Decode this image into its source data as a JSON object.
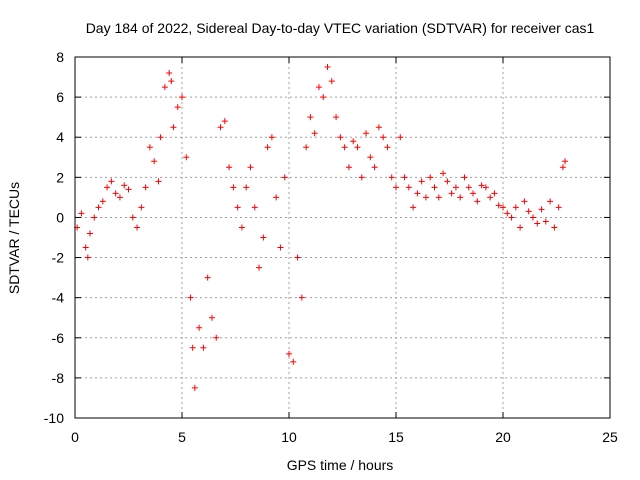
{
  "chart_data": {
    "type": "scatter",
    "title": "Day 184 of 2022, Sidereal Day-to-day VTEC variation (SDTVAR) for receiver cas1",
    "xlabel": "GPS time / hours",
    "ylabel": "SDTVAR / TECUs",
    "xlim": [
      0,
      25
    ],
    "ylim": [
      -10,
      8
    ],
    "xticks": [
      0,
      5,
      10,
      15,
      20,
      25
    ],
    "yticks": [
      -10,
      -8,
      -6,
      -4,
      -2,
      0,
      2,
      4,
      6,
      8
    ],
    "grid": true,
    "marker": "+",
    "color": "#ff0000",
    "series": [
      {
        "name": "cas1",
        "x": [
          0.1,
          0.3,
          0.5,
          0.6,
          0.7,
          0.9,
          1.1,
          1.3,
          1.5,
          1.7,
          1.9,
          2.1,
          2.3,
          2.5,
          2.7,
          2.9,
          3.1,
          3.3,
          3.5,
          3.7,
          3.9,
          4.0,
          4.2,
          4.4,
          4.5,
          4.6,
          4.8,
          5.0,
          5.2,
          5.4,
          5.5,
          5.6,
          5.8,
          6.0,
          6.2,
          6.4,
          6.6,
          6.8,
          7.0,
          7.2,
          7.4,
          7.6,
          7.8,
          8.0,
          8.2,
          8.4,
          8.6,
          8.8,
          9.0,
          9.2,
          9.4,
          9.6,
          9.8,
          10.0,
          10.2,
          10.4,
          10.6,
          10.8,
          11.0,
          11.2,
          11.4,
          11.6,
          11.8,
          12.0,
          12.2,
          12.4,
          12.6,
          12.8,
          13.0,
          13.2,
          13.4,
          13.6,
          13.8,
          14.0,
          14.2,
          14.4,
          14.6,
          14.8,
          15.0,
          15.2,
          15.4,
          15.6,
          15.8,
          16.0,
          16.2,
          16.4,
          16.6,
          16.8,
          17.0,
          17.2,
          17.4,
          17.6,
          17.8,
          18.0,
          18.2,
          18.4,
          18.6,
          18.8,
          19.0,
          19.2,
          19.4,
          19.6,
          19.8,
          20.0,
          20.2,
          20.4,
          20.6,
          20.8,
          21.0,
          21.2,
          21.4,
          21.6,
          21.8,
          22.0,
          22.2,
          22.4,
          22.6,
          22.8,
          22.9
        ],
        "y": [
          -0.5,
          0.2,
          -1.5,
          -2.0,
          -0.8,
          0.0,
          0.5,
          0.8,
          1.5,
          1.8,
          1.2,
          1.0,
          1.6,
          1.4,
          0.0,
          -0.5,
          0.5,
          1.5,
          3.5,
          2.8,
          1.8,
          4.0,
          6.5,
          7.2,
          6.8,
          4.5,
          5.5,
          6.0,
          3.0,
          -4.0,
          -6.5,
          -8.5,
          -5.5,
          -6.5,
          -3.0,
          -5.0,
          -6.0,
          4.5,
          4.8,
          2.5,
          1.5,
          0.5,
          -0.5,
          1.5,
          2.5,
          0.5,
          -2.5,
          -1.0,
          3.5,
          4.0,
          1.0,
          -1.5,
          2.0,
          -6.8,
          -7.2,
          -2.0,
          -4.0,
          3.5,
          5.0,
          4.2,
          6.5,
          6.0,
          7.5,
          6.8,
          5.0,
          4.0,
          3.5,
          2.5,
          3.8,
          3.5,
          2.0,
          4.2,
          3.0,
          2.5,
          4.5,
          4.0,
          3.5,
          2.0,
          1.5,
          4.0,
          2.0,
          1.5,
          0.5,
          1.2,
          1.8,
          1.0,
          2.0,
          1.5,
          1.0,
          2.2,
          1.8,
          1.2,
          1.5,
          1.0,
          2.0,
          1.5,
          1.2,
          0.8,
          1.6,
          1.5,
          1.0,
          1.2,
          0.6,
          0.5,
          0.2,
          0.0,
          0.5,
          -0.5,
          0.8,
          0.3,
          0.0,
          -0.3,
          0.4,
          -0.2,
          0.8,
          -0.5,
          0.5,
          2.5,
          2.8
        ]
      }
    ]
  }
}
